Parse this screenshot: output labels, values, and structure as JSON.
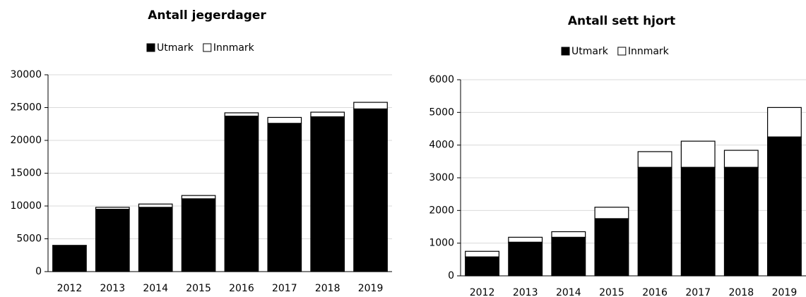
{
  "chart_data": [
    {
      "type": "stacked-bar",
      "title": "Antall jegerdager",
      "categories": [
        "2012",
        "2013",
        "2014",
        "2015",
        "2016",
        "2017",
        "2018",
        "2019"
      ],
      "series": [
        {
          "name": "Utmark",
          "color": "#000000",
          "values": [
            3950,
            9500,
            9800,
            11100,
            23700,
            22600,
            23600,
            24800
          ]
        },
        {
          "name": "Innmark",
          "color": "#ffffff",
          "values": [
            50,
            300,
            500,
            500,
            500,
            900,
            700,
            1000
          ]
        }
      ],
      "ylim": [
        0,
        30000
      ],
      "yticks": [
        0,
        5000,
        10000,
        15000,
        20000,
        25000,
        30000
      ],
      "grid": true,
      "legend": "top"
    },
    {
      "type": "stacked-bar",
      "title": "Antall sett hjort",
      "categories": [
        "2012",
        "2013",
        "2014",
        "2015",
        "2016",
        "2017",
        "2018",
        "2019"
      ],
      "series": [
        {
          "name": "Utmark",
          "color": "#000000",
          "values": [
            580,
            1030,
            1180,
            1750,
            3320,
            3320,
            3320,
            4250
          ]
        },
        {
          "name": "Innmark",
          "color": "#ffffff",
          "values": [
            170,
            150,
            170,
            350,
            480,
            800,
            520,
            900
          ]
        }
      ],
      "ylim": [
        0,
        6000
      ],
      "yticks": [
        0,
        1000,
        2000,
        3000,
        4000,
        5000,
        6000
      ],
      "grid": true,
      "legend": "top"
    }
  ]
}
